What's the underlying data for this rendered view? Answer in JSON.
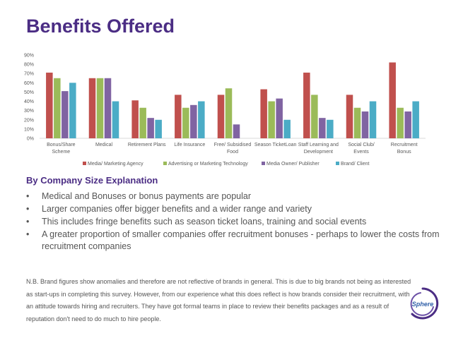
{
  "slide": {
    "title": "Benefits Offered",
    "subheading": "By Company Size Explanation",
    "bullets": [
      "Medical and Bonuses or bonus payments  are popular",
      "Larger companies offer bigger benefits and a wider range and variety",
      "This includes fringe benefits such as season ticket loans, training and social events",
      "A greater proportion of smaller companies offer recruitment bonuses - perhaps to lower the costs from recruitment companies"
    ],
    "bullet_symbol": "•",
    "note": "N.B. Brand figures show anomalies and therefore are not reflective of brands in general. This is due to big brands not being as interested as start-ups in completing this survey. However, from our experience what this does reflect is how brands consider their recruitment, with an attitude towards hiring and recruiters. They have got formal teams in place to review their benefits packages and as a result of reputation don't need to do much to hire people.",
    "logo_text": "Sphere",
    "logo_color": "#2f5fa8"
  },
  "chart_data": {
    "type": "bar",
    "title": "",
    "xlabel": "",
    "ylabel": "",
    "ylim": [
      0,
      90
    ],
    "yticks": [
      "0%",
      "10%",
      "20%",
      "30%",
      "40%",
      "50%",
      "60%",
      "70%",
      "80%",
      "90%"
    ],
    "legend_position": "bottom",
    "grid": false,
    "categories": [
      [
        "Bonus/Share",
        "Scheme"
      ],
      [
        "Medical"
      ],
      [
        "Retirement Plans"
      ],
      [
        "Life Insurance"
      ],
      [
        "Free/ Subsidised",
        "Food"
      ],
      [
        "Season TicketLoan"
      ],
      [
        "Staff Learning and",
        "Development"
      ],
      [
        "Social Club/",
        "Events"
      ],
      [
        "Recruitment",
        "Bonus"
      ]
    ],
    "series": [
      {
        "name": "Media/ Marketing Agency",
        "color": "#c0504d",
        "values": [
          71,
          65,
          41,
          47,
          47,
          53,
          71,
          47,
          82
        ]
      },
      {
        "name": "Advertising or Marketing Technology",
        "color": "#9bbb59",
        "values": [
          65,
          65,
          33,
          33,
          54,
          40,
          47,
          33,
          33
        ]
      },
      {
        "name": "Media Owner/ Publisher",
        "color": "#8064a2",
        "values": [
          51,
          65,
          22,
          36,
          15,
          43,
          22,
          29,
          29
        ]
      },
      {
        "name": "Brand/ Client",
        "color": "#4bacc6",
        "values": [
          60,
          40,
          20,
          40,
          0,
          20,
          20,
          40,
          40
        ]
      }
    ]
  }
}
